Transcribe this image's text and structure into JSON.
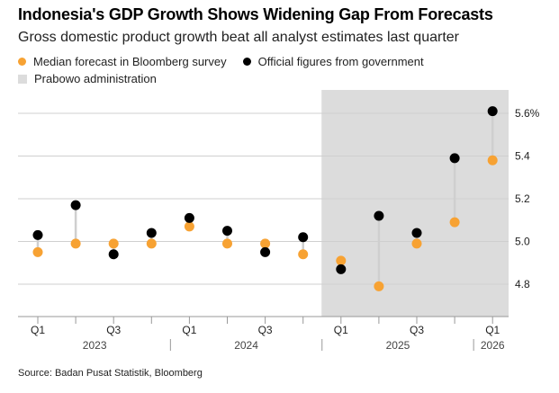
{
  "title": "Indonesia's GDP Growth Shows Widening Gap From Forecasts",
  "subtitle": "Gross domestic product growth beat all analyst estimates last quarter",
  "legend": {
    "forecast": "Median forecast in Bloomberg survey",
    "official": "Official figures from government",
    "shade": "Prabowo administration"
  },
  "source": "Source: Badan Pusat Statistik, Bloomberg",
  "colors": {
    "forecast": "#f7a233",
    "official": "#000000",
    "shade": "#dcdcdc",
    "connector": "#cfcfcf",
    "grid": "#cfcfcf"
  },
  "chart_data": {
    "type": "scatter",
    "periods": [
      "Q1 2023",
      "Q2 2023",
      "Q3 2023",
      "Q4 2023",
      "Q1 2024",
      "Q2 2024",
      "Q3 2024",
      "Q4 2024",
      "Q1 2025",
      "Q2 2025",
      "Q3 2025",
      "Q4 2025",
      "Q1 2026"
    ],
    "x_tick_labels": [
      "Q1",
      "",
      "Q3",
      "",
      "Q1",
      "",
      "Q3",
      "",
      "Q1",
      "",
      "Q3",
      "",
      "Q1"
    ],
    "year_labels": [
      {
        "label": "2023",
        "center_index": 1.5
      },
      {
        "label": "2024",
        "center_index": 5.5
      },
      {
        "label": "2025",
        "center_index": 9.5
      },
      {
        "label": "2026",
        "center_index": 12
      }
    ],
    "year_separators_after_index": [
      3.5,
      7.5,
      11.5
    ],
    "series": [
      {
        "name": "Median forecast in Bloomberg survey",
        "key": "forecast",
        "values": [
          4.95,
          4.99,
          4.99,
          4.99,
          5.07,
          4.99,
          4.99,
          4.94,
          4.91,
          4.79,
          4.99,
          5.09,
          5.38
        ]
      },
      {
        "name": "Official figures from government",
        "key": "official",
        "values": [
          5.03,
          5.17,
          4.94,
          5.04,
          5.11,
          5.05,
          4.95,
          5.02,
          4.87,
          5.12,
          5.04,
          5.39,
          5.61
        ]
      }
    ],
    "y_ticks": [
      4.8,
      5.0,
      5.2,
      5.4,
      5.6
    ],
    "y_tick_labels": [
      "4.8",
      "5.0",
      "5.2",
      "5.4",
      "5.6%"
    ],
    "ylim": [
      4.7,
      5.68
    ],
    "shaded_region": {
      "label": "Prabowo administration",
      "start_index": 7.5,
      "end_index": 12.5
    },
    "grid": true,
    "y_axis_side": "right",
    "legend_position": "top"
  }
}
